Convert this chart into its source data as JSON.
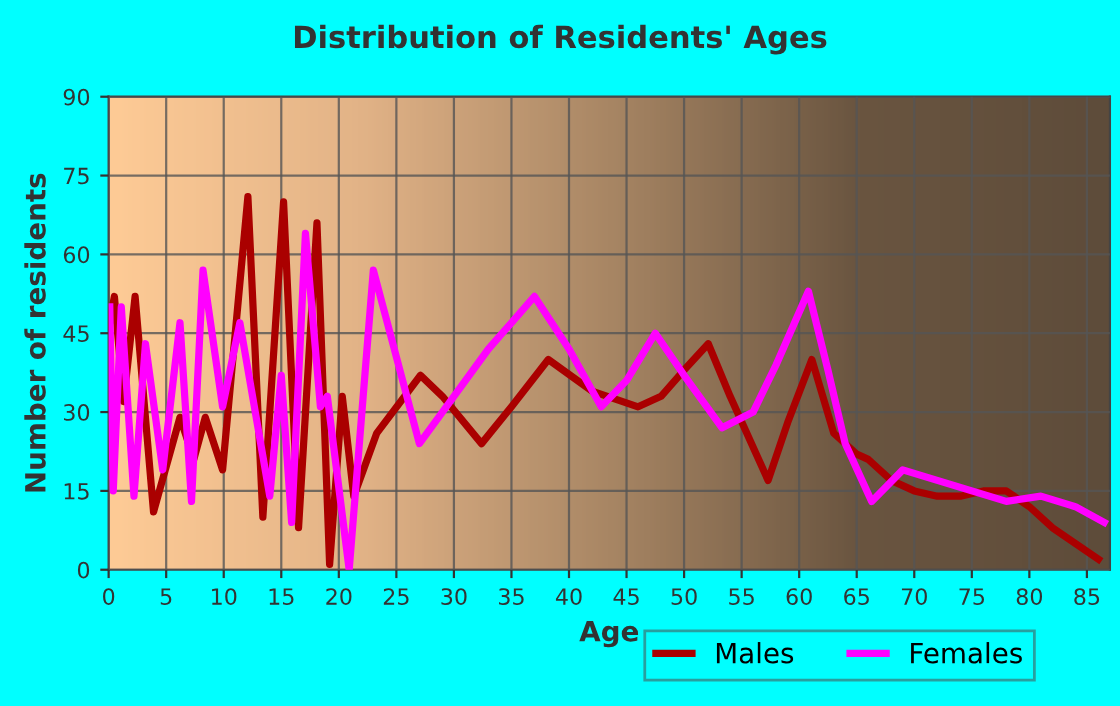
{
  "chart_data": {
    "type": "line",
    "title": "Distribution of Residents' Ages",
    "xlabel": "Age",
    "ylabel": "Number of residents",
    "xlim": [
      0,
      87
    ],
    "xticks": [
      0,
      5,
      10,
      15,
      20,
      25,
      30,
      35,
      40,
      45,
      50,
      55,
      60,
      65,
      70,
      75,
      80,
      85
    ],
    "ylim": [
      0,
      90
    ],
    "yticks": [
      0,
      15,
      30,
      45,
      60,
      75,
      90
    ],
    "grid": true,
    "legend": "bottom",
    "marker": "none",
    "line_style": "solid",
    "series": [
      {
        "name": "Males",
        "color": "#aa0000",
        "x": [
          0,
          0.5,
          1.3,
          2.3,
          3.9,
          6.2,
          7.4,
          8.4,
          9.9,
          12.1,
          13.4,
          15.2,
          16.5,
          18.1,
          19.2,
          20.3,
          21.3,
          23.3,
          27.1,
          29,
          32.4,
          35,
          38.2,
          42,
          46,
          48,
          50,
          52.1,
          54,
          57.3,
          59,
          61.1,
          63,
          65,
          66,
          68,
          70,
          72,
          74,
          76,
          78,
          80,
          82,
          84,
          86
        ],
        "values": [
          46,
          52,
          32,
          52,
          11,
          29,
          21,
          29,
          19,
          71,
          10,
          70,
          8,
          66,
          1,
          33,
          14,
          26,
          37,
          33,
          24,
          31,
          40,
          34,
          31,
          33,
          38,
          43,
          33,
          17,
          28,
          40,
          26,
          22,
          21,
          17,
          15,
          14,
          14,
          15,
          15,
          12,
          8,
          5,
          2
        ]
      },
      {
        "name": "Females",
        "color": "#ff00ff",
        "x": [
          0.1,
          0.4,
          1.1,
          2.2,
          3.2,
          4.7,
          6.2,
          7.2,
          8.2,
          9.9,
          11.4,
          14,
          15,
          15.9,
          17.1,
          18.4,
          19,
          20.9,
          23,
          27,
          30,
          33,
          37,
          40,
          42.8,
          45,
          47.5,
          50,
          53.3,
          56,
          58,
          60.8,
          62.5,
          64,
          66.3,
          69,
          72,
          75,
          78,
          81,
          84,
          86.5
        ],
        "values": [
          50,
          15,
          50,
          14,
          43,
          19,
          47,
          13,
          57,
          31,
          47,
          14,
          37,
          9,
          64,
          31,
          33,
          0,
          57,
          24,
          33,
          42,
          52,
          42,
          31,
          36,
          45,
          37,
          27,
          30,
          39,
          53,
          38,
          24,
          13,
          19,
          17,
          15,
          13,
          14,
          12,
          9
        ]
      }
    ]
  }
}
